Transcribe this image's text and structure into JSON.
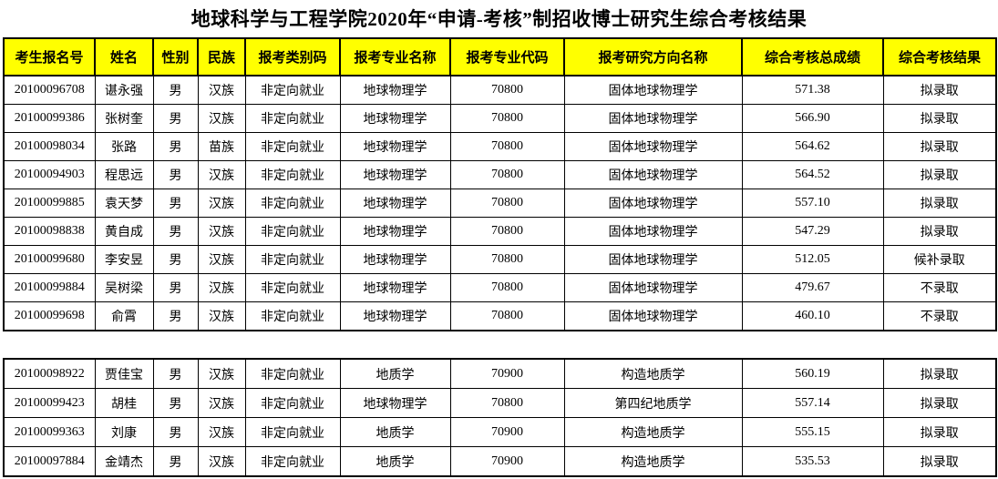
{
  "title": "地球科学与工程学院2020年“申请-考核”制招收博士研究生综合考核结果",
  "columns": [
    "考生报名号",
    "姓名",
    "性别",
    "民族",
    "报考类别码",
    "报考专业名称",
    "报考专业代码",
    "报考研究方向名称",
    "综合考核总成绩",
    "综合考核结果"
  ],
  "geophysics_table": {
    "rows": [
      [
        "20100096708",
        "谌永强",
        "男",
        "汉族",
        "非定向就业",
        "地球物理学",
        "70800",
        "固体地球物理学",
        "571.38",
        "拟录取"
      ],
      [
        "20100099386",
        "张树奎",
        "男",
        "汉族",
        "非定向就业",
        "地球物理学",
        "70800",
        "固体地球物理学",
        "566.90",
        "拟录取"
      ],
      [
        "20100098034",
        "张路",
        "男",
        "苗族",
        "非定向就业",
        "地球物理学",
        "70800",
        "固体地球物理学",
        "564.62",
        "拟录取"
      ],
      [
        "20100094903",
        "程思远",
        "男",
        "汉族",
        "非定向就业",
        "地球物理学",
        "70800",
        "固体地球物理学",
        "564.52",
        "拟录取"
      ],
      [
        "20100099885",
        "袁天梦",
        "男",
        "汉族",
        "非定向就业",
        "地球物理学",
        "70800",
        "固体地球物理学",
        "557.10",
        "拟录取"
      ],
      [
        "20100098838",
        "黄自成",
        "男",
        "汉族",
        "非定向就业",
        "地球物理学",
        "70800",
        "固体地球物理学",
        "547.29",
        "拟录取"
      ],
      [
        "20100099680",
        "李安昱",
        "男",
        "汉族",
        "非定向就业",
        "地球物理学",
        "70800",
        "固体地球物理学",
        "512.05",
        "候补录取"
      ],
      [
        "20100099884",
        "吴树梁",
        "男",
        "汉族",
        "非定向就业",
        "地球物理学",
        "70800",
        "固体地球物理学",
        "479.67",
        "不录取"
      ],
      [
        "20100099698",
        "俞霄",
        "男",
        "汉族",
        "非定向就业",
        "地球物理学",
        "70800",
        "固体地球物理学",
        "460.10",
        "不录取"
      ]
    ]
  },
  "geology_table": {
    "rows": [
      [
        "20100098922",
        "贾佳宝",
        "男",
        "汉族",
        "非定向就业",
        "地质学",
        "70900",
        "构造地质学",
        "560.19",
        "拟录取"
      ],
      [
        "20100099423",
        "胡桂",
        "男",
        "汉族",
        "非定向就业",
        "地球物理学",
        "70800",
        "第四纪地质学",
        "557.14",
        "拟录取"
      ],
      [
        "20100099363",
        "刘康",
        "男",
        "汉族",
        "非定向就业",
        "地质学",
        "70900",
        "构造地质学",
        "555.15",
        "拟录取"
      ],
      [
        "20100097884",
        "金靖杰",
        "男",
        "汉族",
        "非定向就业",
        "地质学",
        "70900",
        "构造地质学",
        "535.53",
        "拟录取"
      ]
    ]
  },
  "colors": {
    "header_bg": "#FFFF00",
    "border": "#000000",
    "text": "#000000",
    "page_bg": "#FFFFFF"
  }
}
